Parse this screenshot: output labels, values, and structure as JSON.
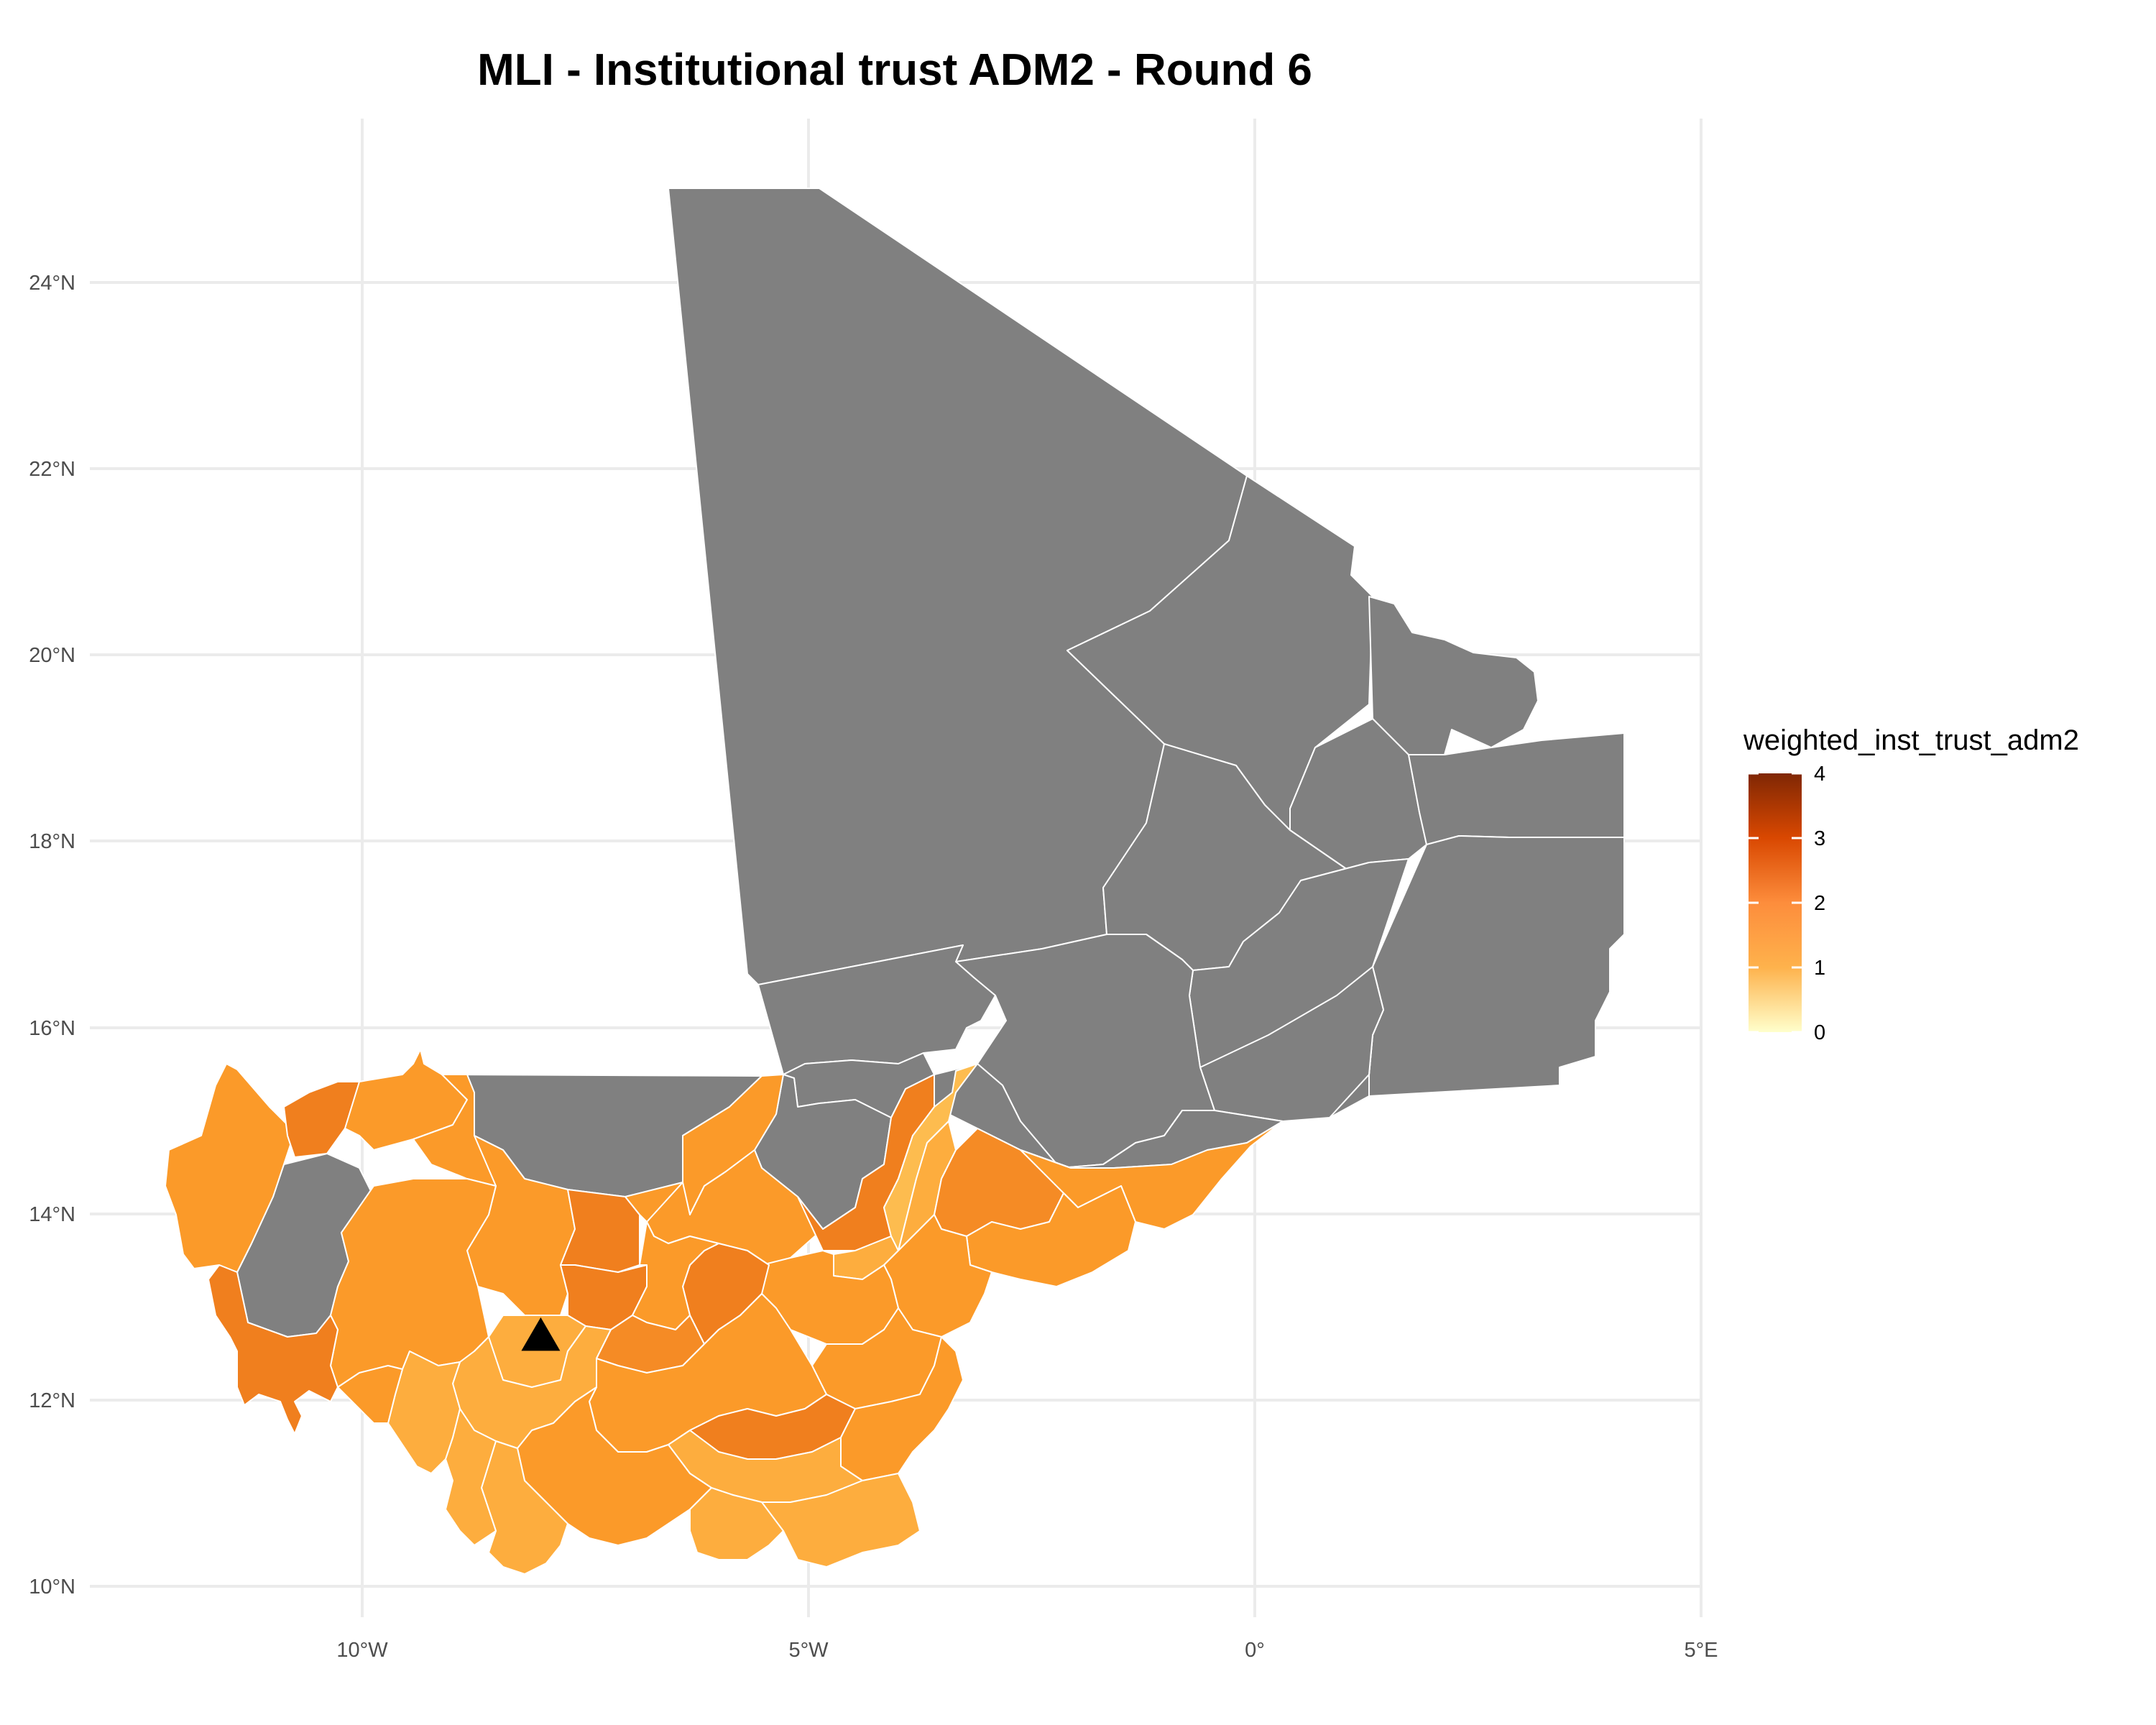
{
  "title": "MLI - Institutional trust ADM2 - Round 6",
  "colors": {
    "no_data": "#808080",
    "boundary": "#ffffff",
    "grid": "#ebebeb",
    "axis_text": "#4d4d4d"
  },
  "legend": {
    "title": "weighted_inst_trust_adm2",
    "ticks": [
      "4",
      "3",
      "2",
      "1",
      "0"
    ],
    "gradient": [
      "#7f2704",
      "#d94801",
      "#fd8d3c",
      "#feb24c",
      "#ffffcc"
    ]
  },
  "axes": {
    "x_ticks": [
      "10°W",
      "5°W",
      "0°",
      "5°E"
    ],
    "y_ticks": [
      "24°N",
      "22°N",
      "20°N",
      "18°N",
      "16°N",
      "14°N",
      "12°N",
      "10°N"
    ]
  },
  "marker": {
    "shape": "triangle",
    "color": "#000000",
    "lon": -8.0,
    "lat": 12.65
  },
  "chart_data": {
    "type": "choropleth",
    "title": "MLI - Institutional trust ADM2 - Round 6",
    "xlim": [
      -12.5,
      5.2
    ],
    "ylim": [
      9.8,
      25.1
    ],
    "color_scale": {
      "min": 0,
      "max": 4
    },
    "grid": true,
    "legend_position": "right",
    "northern_regions": "no data (grey)",
    "southern_regions_value_range": [
      1.3,
      2.4
    ]
  }
}
